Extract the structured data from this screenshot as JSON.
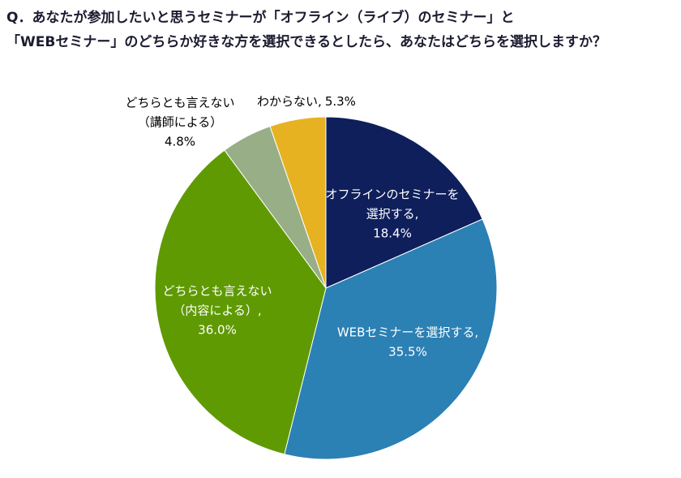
{
  "chart_data": {
    "type": "pie",
    "title": [
      "Q．あなたが参加したいと思うセミナーが「オフライン（ライブ）のセミナー」と",
      "「WEBセミナー」のどちらか好きな方を選択できるとしたら、あなたはどちらを選択しますか？"
    ],
    "categories": [
      [
        "オフラインのセミナーを",
        "選択する,"
      ],
      [
        "WEBセミナーを選択する,"
      ],
      [
        "どちらとも言えない",
        "（内容による）,"
      ],
      [
        "どちらとも言えない",
        "（講師による）"
      ],
      [
        "わからない,"
      ]
    ],
    "values": [
      18.4,
      35.5,
      36.0,
      4.8,
      5.3
    ],
    "value_labels": [
      "18.4%",
      "35.5%",
      "36.0%",
      "4.8%",
      "5.3%"
    ],
    "colors": [
      "#0f1f5c",
      "#2b80b4",
      "#5f9a02",
      "#98ae86",
      "#e6b222"
    ]
  }
}
